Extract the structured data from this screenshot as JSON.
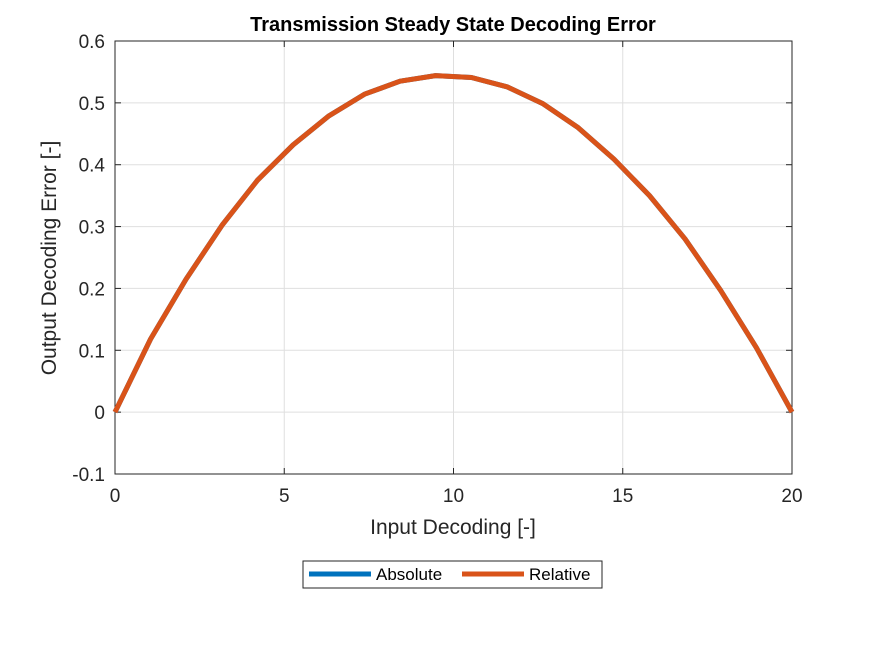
{
  "chart_data": {
    "type": "line",
    "title": "Transmission Steady State Decoding Error",
    "xlabel": "Input Decoding [-]",
    "ylabel": "Output Decoding Error [-]",
    "xlim": [
      0,
      20
    ],
    "ylim": [
      -0.1,
      0.6
    ],
    "xticks": [
      "0",
      "5",
      "10",
      "15",
      "20"
    ],
    "yticks": [
      "-0.1",
      "0",
      "0.1",
      "0.2",
      "0.3",
      "0.4",
      "0.5",
      "0.6"
    ],
    "grid": true,
    "legend": {
      "placement": "bottom-outside",
      "orientation": "horizontal"
    },
    "series": [
      {
        "name": "Absolute",
        "color": "#0072BD",
        "x": [
          0,
          1.05,
          2.1,
          3.16,
          4.21,
          5.26,
          6.32,
          7.37,
          8.42,
          9.47,
          10.53,
          11.58,
          12.63,
          13.68,
          14.74,
          15.79,
          16.84,
          17.89,
          18.95,
          20
        ],
        "y": [
          0,
          0.118,
          0.215,
          0.302,
          0.375,
          0.432,
          0.479,
          0.514,
          0.535,
          0.544,
          0.541,
          0.526,
          0.499,
          0.46,
          0.409,
          0.35,
          0.28,
          0.197,
          0.104,
          0
        ]
      },
      {
        "name": "Relative",
        "color": "#D95319",
        "x": [
          0,
          1.05,
          2.1,
          3.16,
          4.21,
          5.26,
          6.32,
          7.37,
          8.42,
          9.47,
          10.53,
          11.58,
          12.63,
          13.68,
          14.74,
          15.79,
          16.84,
          17.89,
          18.95,
          20
        ],
        "y": [
          0,
          0.118,
          0.215,
          0.302,
          0.375,
          0.432,
          0.479,
          0.514,
          0.535,
          0.544,
          0.541,
          0.526,
          0.499,
          0.46,
          0.409,
          0.35,
          0.28,
          0.197,
          0.104,
          0
        ]
      }
    ]
  }
}
